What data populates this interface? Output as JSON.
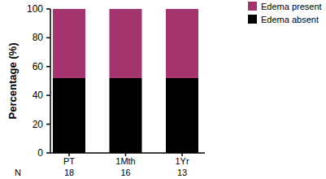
{
  "chart_data": {
    "type": "bar",
    "stacked": true,
    "categories": [
      "PT",
      "1Mth",
      "1Yr"
    ],
    "series": [
      {
        "name": "Edema absent",
        "color": "#000000",
        "values": [
          52,
          52,
          52
        ]
      },
      {
        "name": "Edema present",
        "color": "#a3346e",
        "values": [
          48,
          48,
          48
        ]
      }
    ],
    "y_label": "Percentage (%)",
    "ylim": [
      0,
      100
    ],
    "yticks": [
      0,
      20,
      40,
      60,
      80,
      100
    ],
    "grid": false,
    "legend": "upper right",
    "sample_sizes": {
      "label": "N",
      "values": [
        18,
        16,
        13
      ]
    }
  }
}
